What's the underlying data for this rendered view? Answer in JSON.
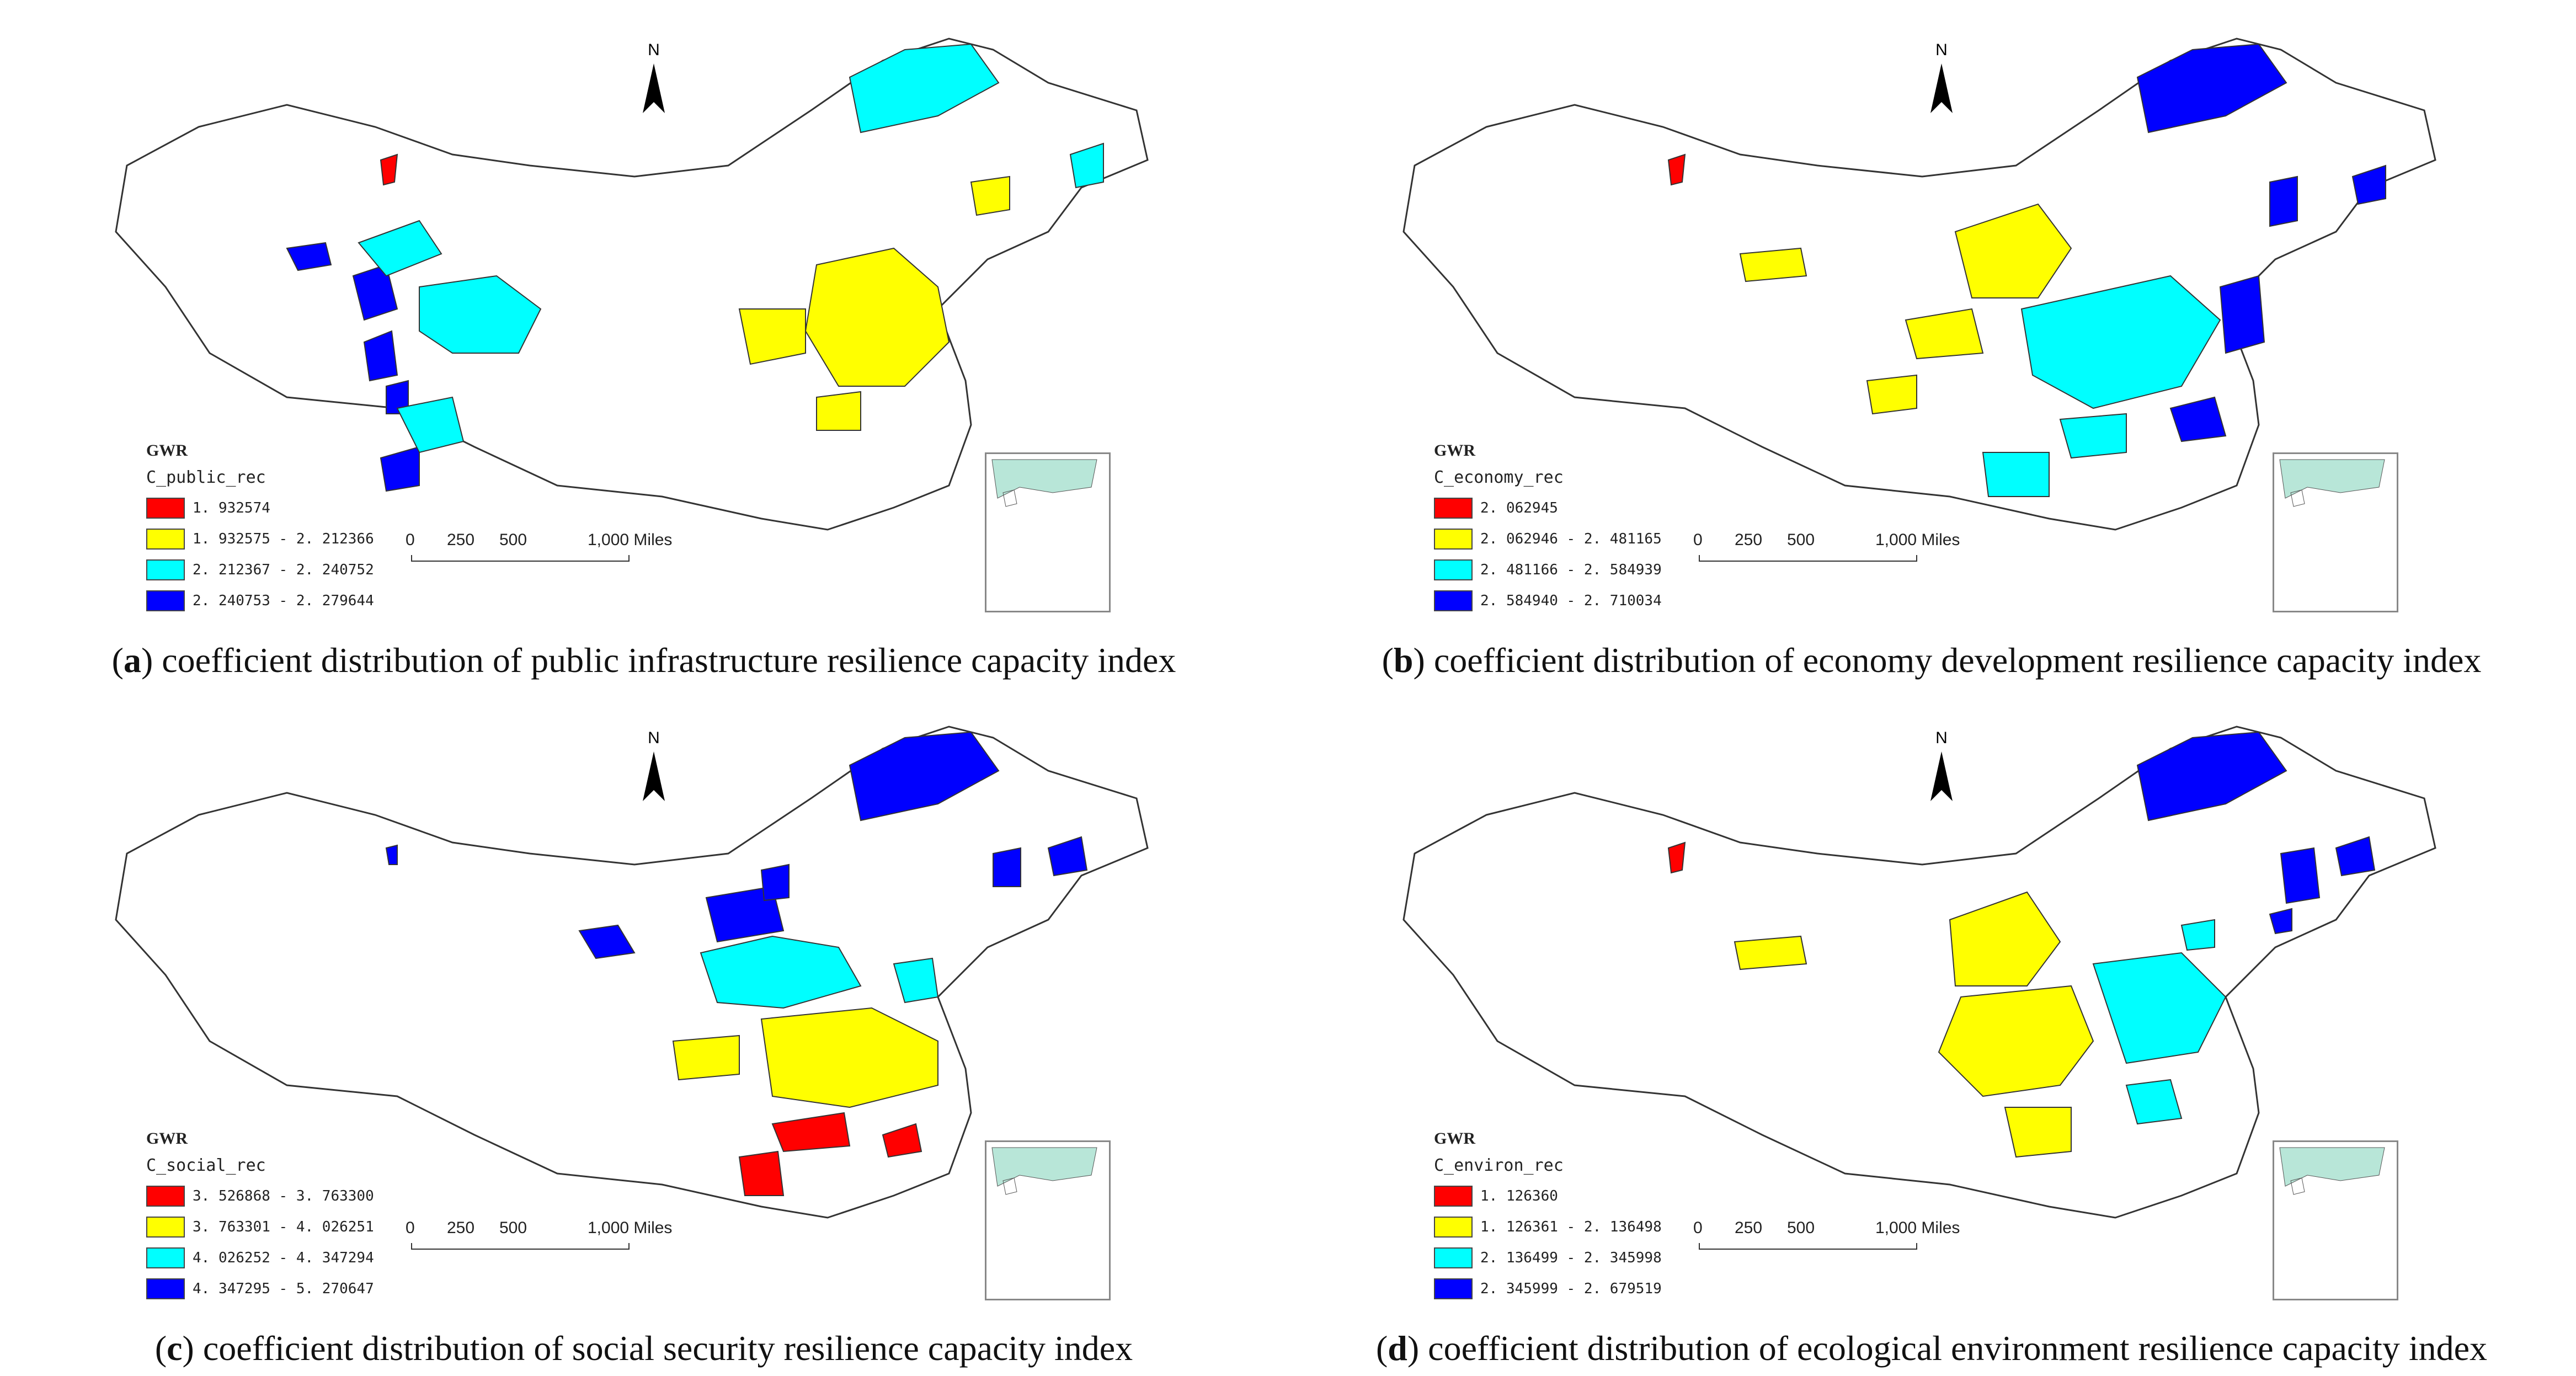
{
  "panels": [
    {
      "letter": "a",
      "caption": "coefficient distribution of public infrastructure resilience capacity index",
      "legend": {
        "title": "GWR",
        "field": "C_public_rec",
        "classes": [
          {
            "label": "1. 932574",
            "color": "#ff0000"
          },
          {
            "label": "1. 932575 - 2. 212366",
            "color": "#ffff00"
          },
          {
            "label": "2. 212367 - 2. 240752",
            "color": "#00ffff"
          },
          {
            "label": "2. 240753 - 2. 279644",
            "color": "#0000ff"
          }
        ]
      }
    },
    {
      "letter": "b",
      "caption": "coefficient distribution of economy development resilience capacity index",
      "legend": {
        "title": "GWR",
        "field": "C_economy_rec",
        "classes": [
          {
            "label": "2. 062945",
            "color": "#ff0000"
          },
          {
            "label": "2. 062946 - 2. 481165",
            "color": "#ffff00"
          },
          {
            "label": "2. 481166 - 2. 584939",
            "color": "#00ffff"
          },
          {
            "label": "2. 584940 - 2. 710034",
            "color": "#0000ff"
          }
        ]
      }
    },
    {
      "letter": "c",
      "caption": "coefficient distribution of social security resilience capacity index",
      "legend": {
        "title": "GWR",
        "field": "C_social_rec",
        "classes": [
          {
            "label": "3. 526868 - 3. 763300",
            "color": "#ff0000"
          },
          {
            "label": "3. 763301 - 4. 026251",
            "color": "#ffff00"
          },
          {
            "label": "4. 026252 - 4. 347294",
            "color": "#00ffff"
          },
          {
            "label": "4. 347295 - 5. 270647",
            "color": "#0000ff"
          }
        ]
      }
    },
    {
      "letter": "d",
      "caption": "coefficient distribution of ecological environment resilience capacity index",
      "legend": {
        "title": "GWR",
        "field": "C_environ_rec",
        "classes": [
          {
            "label": "1. 126360",
            "color": "#ff0000"
          },
          {
            "label": "1. 126361 - 2. 136498",
            "color": "#ffff00"
          },
          {
            "label": "2. 136499 - 2. 345998",
            "color": "#00ffff"
          },
          {
            "label": "2. 345999 - 2. 679519",
            "color": "#0000ff"
          }
        ]
      }
    }
  ],
  "scale_bar": {
    "ticks": [
      "0",
      "250",
      "500",
      "1,000 Miles"
    ]
  },
  "north_label": "N"
}
